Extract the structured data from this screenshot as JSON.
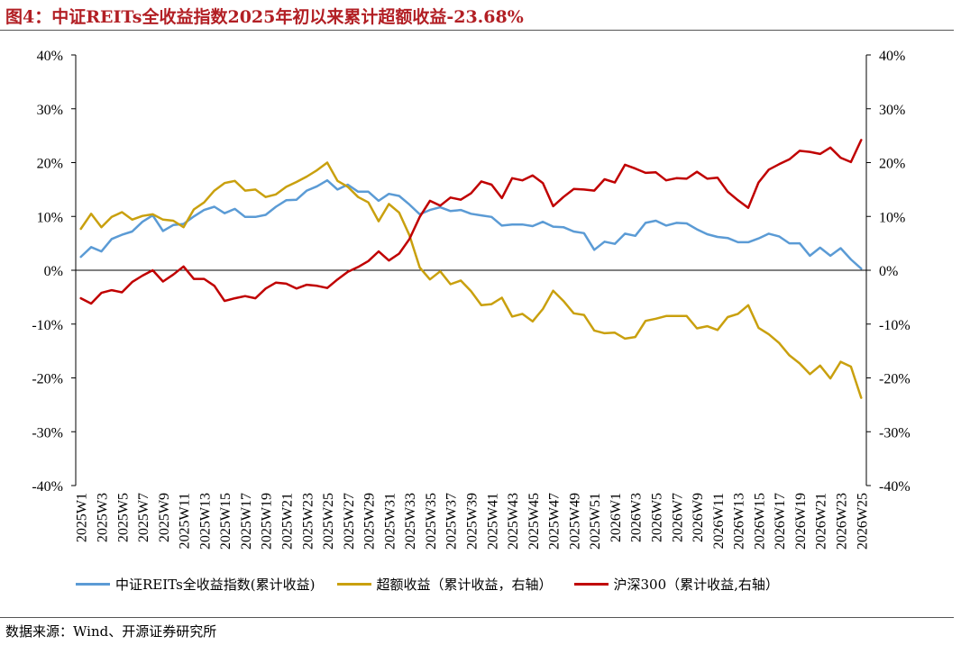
{
  "title": "图4：中证REITs全收益指数2025年初以来累计超额收益-23.68%",
  "source": "数据来源：Wind、开源证券研究所",
  "chart_data": {
    "type": "line",
    "x": [
      "2025W1",
      "2025W2",
      "2025W3",
      "2025W4",
      "2025W5",
      "2025W6",
      "2025W7",
      "2025W8",
      "2025W9",
      "2025W10",
      "2025W11",
      "2025W12",
      "2025W13",
      "2025W14",
      "2025W15",
      "2025W16",
      "2025W17",
      "2025W18",
      "2025W19",
      "2025W20",
      "2025W21",
      "2025W22",
      "2025W23",
      "2025W24",
      "2025W25",
      "2025W26",
      "2025W27",
      "2025W28",
      "2025W29",
      "2025W30",
      "2025W31",
      "2025W32",
      "2025W33",
      "2025W34",
      "2025W35",
      "2025W36",
      "2025W37",
      "2025W38",
      "2025W39",
      "2025W40",
      "2025W41",
      "2025W42",
      "2025W43",
      "2025W44",
      "2025W45",
      "2025W46",
      "2025W47",
      "2025W48",
      "2025W49",
      "2025W50",
      "2025W51",
      "2025W52",
      "2026W1",
      "2026W2",
      "2026W3",
      "2026W4",
      "2026W5",
      "2026W6",
      "2026W7",
      "2026W8",
      "2026W9",
      "2026W10",
      "2026W11",
      "2026W12",
      "2026W13",
      "2026W14",
      "2026W15",
      "2026W16",
      "2026W17",
      "2026W18",
      "2026W19",
      "2026W20",
      "2026W21",
      "2026W22",
      "2026W23",
      "2026W24",
      "2026W25"
    ],
    "x_tick_labels": [
      "2025W1",
      "2025W3",
      "2025W5",
      "2025W7",
      "2025W9",
      "2025W11",
      "2025W13",
      "2025W15",
      "2025W17",
      "2025W19",
      "2025W21",
      "2025W23",
      "2025W25",
      "2025W27",
      "2025W29",
      "2025W31",
      "2025W33",
      "2025W35",
      "2025W37",
      "2025W39",
      "2025W41",
      "2025W43",
      "2025W45",
      "2025W47",
      "2025W49",
      "2025W51",
      "2026W1",
      "2026W3",
      "2026W5",
      "2026W7",
      "2026W9",
      "2026W11",
      "2026W13",
      "2026W15",
      "2026W17",
      "2026W19",
      "2026W21",
      "2026W23",
      "2026W25"
    ],
    "y_ticks_left": [
      "40%",
      "30%",
      "20%",
      "10%",
      "0%",
      "-10%",
      "-20%",
      "-30%",
      "-40%"
    ],
    "y_ticks_right": [
      "40%",
      "30%",
      "20%",
      "10%",
      "0%",
      "-10%",
      "-20%",
      "-30%",
      "-40%"
    ],
    "ylim": [
      -40,
      40
    ],
    "series": [
      {
        "name": "中证REITs全收益指数(累计收益)",
        "color": "#5b9bd5",
        "axis": "left",
        "values": [
          2.5,
          4.3,
          3.5,
          5.8,
          6.6,
          7.2,
          9,
          10.2,
          7.3,
          8.4,
          8.6,
          10,
          11.2,
          11.8,
          10.6,
          11.4,
          9.9,
          9.9,
          10.3,
          11.8,
          13,
          13.1,
          14.8,
          15.6,
          16.7,
          15,
          15.9,
          14.6,
          14.6,
          12.9,
          14.2,
          13.8,
          12.2,
          10.4,
          11.2,
          11.7,
          11,
          11.2,
          10.5,
          10.2,
          9.9,
          8.3,
          8.5,
          8.5,
          8.2,
          9,
          8.1,
          8,
          7.2,
          6.9,
          3.8,
          5.3,
          4.9,
          6.8,
          6.4,
          8.8,
          9.2,
          8.3,
          8.8,
          8.7,
          7.6,
          6.7,
          6.2,
          6,
          5.2,
          5.2,
          5.9,
          6.8,
          6.3,
          5,
          5,
          2.7,
          4.2,
          2.7,
          4.1,
          2,
          0.3
        ]
      },
      {
        "name": "超额收益（累计收益，右轴）",
        "color": "#c9a00e",
        "axis": "right",
        "values": [
          7.7,
          10.5,
          8,
          9.9,
          10.8,
          9.4,
          10.1,
          10.4,
          9.4,
          9.2,
          8,
          11.3,
          12.6,
          14.8,
          16.2,
          16.6,
          14.8,
          15,
          13.6,
          14.1,
          15.5,
          16.4,
          17.4,
          18.6,
          20,
          16.6,
          15.5,
          13.6,
          12.6,
          9.1,
          12.3,
          10.7,
          6.5,
          0.5,
          -1.7,
          -0.2,
          -2.6,
          -1.9,
          -3.9,
          -6.5,
          -6.3,
          -5.1,
          -8.6,
          -8.1,
          -9.5,
          -7.2,
          -3.8,
          -5.7,
          -8,
          -8.3,
          -11.2,
          -11.7,
          -11.6,
          -12.7,
          -12.4,
          -9.4,
          -9,
          -8.5,
          -8.5,
          -8.5,
          -10.8,
          -10.4,
          -11.1,
          -8.7,
          -8.1,
          -6.5,
          -10.7,
          -11.9,
          -13.5,
          -15.8,
          -17.3,
          -19.3,
          -17.7,
          -20.1,
          -17,
          -17.9,
          -23.7
        ]
      },
      {
        "name": "沪深300（累计收益,右轴）",
        "color": "#c00000",
        "axis": "right",
        "values": [
          -5.2,
          -6.2,
          -4.2,
          -3.7,
          -4.1,
          -2.2,
          -1,
          0,
          -2.1,
          -0.8,
          0.7,
          -1.6,
          -1.6,
          -2.9,
          -5.7,
          -5.2,
          -4.8,
          -5.2,
          -3.4,
          -2.3,
          -2.5,
          -3.4,
          -2.7,
          -2.9,
          -3.3,
          -1.7,
          -0.3,
          0.6,
          1.7,
          3.5,
          1.8,
          3.1,
          5.8,
          9.9,
          12.9,
          12,
          13.5,
          13.1,
          14.3,
          16.5,
          15.9,
          13.4,
          17.1,
          16.7,
          17.6,
          16.2,
          11.9,
          13.6,
          15.1,
          15,
          14.8,
          16.9,
          16.3,
          19.6,
          18.9,
          18.1,
          18.2,
          16.7,
          17.1,
          17,
          18.3,
          17,
          17.2,
          14.6,
          13,
          11.6,
          16.3,
          18.7,
          19.7,
          20.6,
          22.2,
          22,
          21.6,
          22.8,
          20.9,
          20.1,
          24.2
        ]
      }
    ],
    "grid": false,
    "legend_position": "bottom"
  }
}
